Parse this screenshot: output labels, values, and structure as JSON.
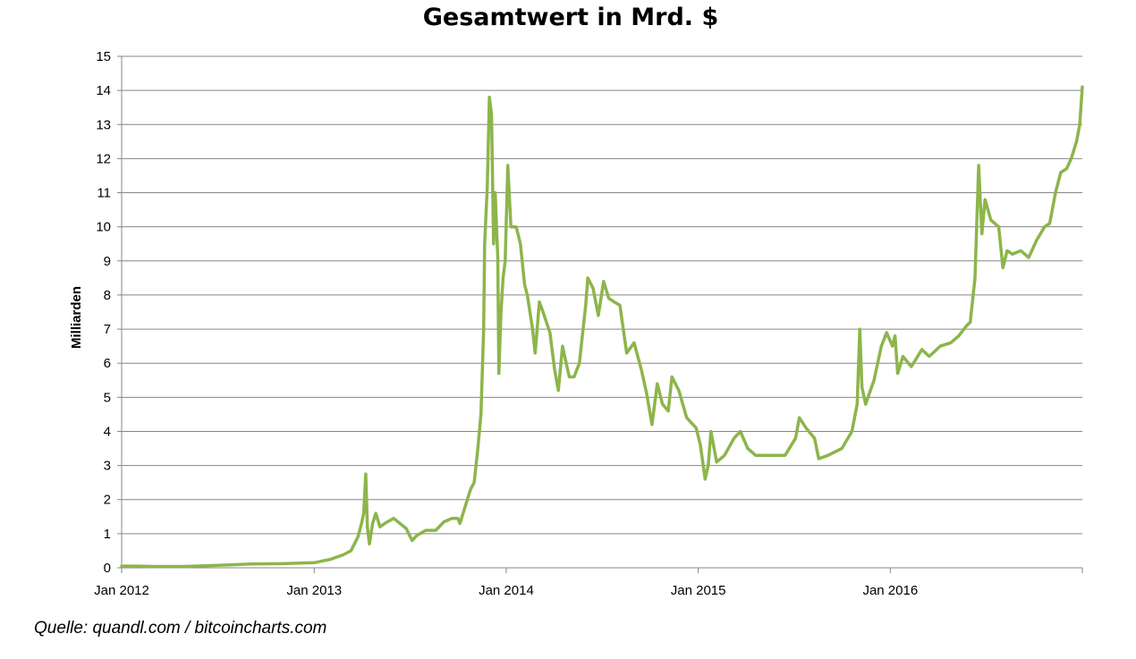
{
  "chart_data": {
    "type": "line",
    "title": "Gesamtwert in Mrd. $",
    "xlabel": "",
    "ylabel": "Milliarden",
    "ylim": [
      0,
      15
    ],
    "yticks": [
      0,
      1,
      2,
      3,
      4,
      5,
      6,
      7,
      8,
      9,
      10,
      11,
      12,
      13,
      14,
      15
    ],
    "xlim": [
      "2012-01-01",
      "2016-12-31"
    ],
    "xtick_labels": [
      "Jan 2012",
      "Jan 2013",
      "Jan 2014",
      "Jan 2015",
      "Jan 2016"
    ],
    "xtick_dates": [
      "2012-01-01",
      "2013-01-01",
      "2014-01-01",
      "2015-01-01",
      "2016-01-01"
    ],
    "grid": "horizontal",
    "legend": "none",
    "series": [
      {
        "color": "#8db54b",
        "points": [
          [
            "2012-01-01",
            0.05
          ],
          [
            "2012-02-01",
            0.05
          ],
          [
            "2012-03-01",
            0.04
          ],
          [
            "2012-05-01",
            0.04
          ],
          [
            "2012-07-01",
            0.07
          ],
          [
            "2012-09-01",
            0.11
          ],
          [
            "2012-11-01",
            0.12
          ],
          [
            "2013-01-01",
            0.15
          ],
          [
            "2013-02-01",
            0.25
          ],
          [
            "2013-02-25",
            0.38
          ],
          [
            "2013-03-12",
            0.5
          ],
          [
            "2013-03-25",
            0.9
          ],
          [
            "2013-04-01",
            1.3
          ],
          [
            "2013-04-05",
            1.6
          ],
          [
            "2013-04-09",
            2.75
          ],
          [
            "2013-04-12",
            1.2
          ],
          [
            "2013-04-16",
            0.7
          ],
          [
            "2013-04-22",
            1.3
          ],
          [
            "2013-04-28",
            1.6
          ],
          [
            "2013-05-06",
            1.2
          ],
          [
            "2013-05-15",
            1.3
          ],
          [
            "2013-06-01",
            1.45
          ],
          [
            "2013-06-25",
            1.15
          ],
          [
            "2013-07-06",
            0.8
          ],
          [
            "2013-07-15",
            0.95
          ],
          [
            "2013-08-01",
            1.1
          ],
          [
            "2013-08-20",
            1.1
          ],
          [
            "2013-09-05",
            1.35
          ],
          [
            "2013-09-20",
            1.45
          ],
          [
            "2013-10-01",
            1.45
          ],
          [
            "2013-10-05",
            1.3
          ],
          [
            "2013-10-15",
            1.8
          ],
          [
            "2013-10-25",
            2.3
          ],
          [
            "2013-11-01",
            2.5
          ],
          [
            "2013-11-08",
            3.5
          ],
          [
            "2013-11-14",
            4.5
          ],
          [
            "2013-11-19",
            7.0
          ],
          [
            "2013-11-21",
            9.5
          ],
          [
            "2013-11-26",
            11.2
          ],
          [
            "2013-11-30",
            13.8
          ],
          [
            "2013-12-04",
            13.3
          ],
          [
            "2013-12-08",
            9.5
          ],
          [
            "2013-12-11",
            11.0
          ],
          [
            "2013-12-16",
            9.1
          ],
          [
            "2013-12-18",
            5.7
          ],
          [
            "2013-12-22",
            7.5
          ],
          [
            "2013-12-26",
            8.5
          ],
          [
            "2013-12-30",
            9.0
          ],
          [
            "2014-01-04",
            11.8
          ],
          [
            "2014-01-10",
            10.0
          ],
          [
            "2014-01-20",
            10.0
          ],
          [
            "2014-01-28",
            9.5
          ],
          [
            "2014-02-05",
            8.3
          ],
          [
            "2014-02-10",
            8.0
          ],
          [
            "2014-02-20",
            7.0
          ],
          [
            "2014-02-25",
            6.3
          ],
          [
            "2014-03-05",
            7.8
          ],
          [
            "2014-03-12",
            7.5
          ],
          [
            "2014-03-25",
            6.9
          ],
          [
            "2014-04-03",
            5.8
          ],
          [
            "2014-04-10",
            5.2
          ],
          [
            "2014-04-18",
            6.5
          ],
          [
            "2014-04-25",
            6.0
          ],
          [
            "2014-05-01",
            5.6
          ],
          [
            "2014-05-10",
            5.6
          ],
          [
            "2014-05-20",
            6.0
          ],
          [
            "2014-06-01",
            7.7
          ],
          [
            "2014-06-05",
            8.5
          ],
          [
            "2014-06-15",
            8.2
          ],
          [
            "2014-06-25",
            7.4
          ],
          [
            "2014-07-05",
            8.4
          ],
          [
            "2014-07-15",
            7.9
          ],
          [
            "2014-07-25",
            7.8
          ],
          [
            "2014-08-05",
            7.7
          ],
          [
            "2014-08-18",
            6.3
          ],
          [
            "2014-09-01",
            6.6
          ],
          [
            "2014-09-15",
            5.8
          ],
          [
            "2014-09-25",
            5.1
          ],
          [
            "2014-10-05",
            4.2
          ],
          [
            "2014-10-15",
            5.4
          ],
          [
            "2014-10-25",
            4.8
          ],
          [
            "2014-11-05",
            4.6
          ],
          [
            "2014-11-12",
            5.6
          ],
          [
            "2014-11-25",
            5.2
          ],
          [
            "2014-12-10",
            4.4
          ],
          [
            "2014-12-28",
            4.1
          ],
          [
            "2015-01-05",
            3.6
          ],
          [
            "2015-01-14",
            2.6
          ],
          [
            "2015-01-20",
            3.0
          ],
          [
            "2015-01-25",
            4.0
          ],
          [
            "2015-02-05",
            3.1
          ],
          [
            "2015-02-20",
            3.3
          ],
          [
            "2015-03-10",
            3.8
          ],
          [
            "2015-03-22",
            4.0
          ],
          [
            "2015-04-05",
            3.5
          ],
          [
            "2015-04-20",
            3.3
          ],
          [
            "2015-05-15",
            3.3
          ],
          [
            "2015-06-15",
            3.3
          ],
          [
            "2015-07-05",
            3.8
          ],
          [
            "2015-07-12",
            4.4
          ],
          [
            "2015-07-25",
            4.1
          ],
          [
            "2015-08-10",
            3.8
          ],
          [
            "2015-08-18",
            3.2
          ],
          [
            "2015-09-05",
            3.3
          ],
          [
            "2015-10-01",
            3.5
          ],
          [
            "2015-10-20",
            4.0
          ],
          [
            "2015-10-30",
            4.8
          ],
          [
            "2015-11-04",
            7.0
          ],
          [
            "2015-11-08",
            5.3
          ],
          [
            "2015-11-15",
            4.8
          ],
          [
            "2015-12-01",
            5.5
          ],
          [
            "2015-12-15",
            6.5
          ],
          [
            "2015-12-25",
            6.9
          ],
          [
            "2016-01-05",
            6.5
          ],
          [
            "2016-01-10",
            6.8
          ],
          [
            "2016-01-15",
            5.7
          ],
          [
            "2016-01-25",
            6.2
          ],
          [
            "2016-02-10",
            5.9
          ],
          [
            "2016-03-01",
            6.4
          ],
          [
            "2016-03-15",
            6.2
          ],
          [
            "2016-04-05",
            6.5
          ],
          [
            "2016-04-25",
            6.6
          ],
          [
            "2016-05-10",
            6.8
          ],
          [
            "2016-05-25",
            7.1
          ],
          [
            "2016-06-01",
            7.2
          ],
          [
            "2016-06-10",
            8.5
          ],
          [
            "2016-06-17",
            11.8
          ],
          [
            "2016-06-23",
            9.8
          ],
          [
            "2016-06-29",
            10.8
          ],
          [
            "2016-07-10",
            10.2
          ],
          [
            "2016-07-25",
            10.0
          ],
          [
            "2016-08-02",
            8.8
          ],
          [
            "2016-08-10",
            9.3
          ],
          [
            "2016-08-20",
            9.2
          ],
          [
            "2016-09-05",
            9.3
          ],
          [
            "2016-09-20",
            9.1
          ],
          [
            "2016-10-05",
            9.6
          ],
          [
            "2016-10-20",
            10.0
          ],
          [
            "2016-10-30",
            10.1
          ],
          [
            "2016-11-10",
            11.0
          ],
          [
            "2016-11-20",
            11.6
          ],
          [
            "2016-12-01",
            11.7
          ],
          [
            "2016-12-10",
            12.0
          ],
          [
            "2016-12-20",
            12.5
          ],
          [
            "2016-12-26",
            13.0
          ],
          [
            "2016-12-31",
            14.1
          ]
        ]
      }
    ]
  },
  "source_note": "Quelle: quandl.com / bitcoincharts.com",
  "colors": {
    "line": "#8db54b",
    "grid": "#868686",
    "axis": "#868686"
  }
}
